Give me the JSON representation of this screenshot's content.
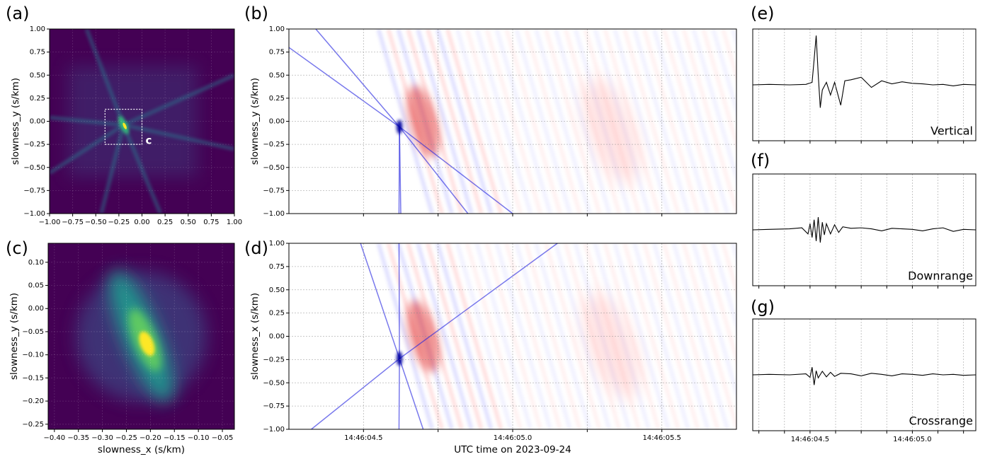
{
  "chart_data": [
    {
      "type": "heatmap",
      "panel_label": "(a)",
      "ylabel": "slowness_y (s/km)",
      "xlim": [
        -1,
        1
      ],
      "ylim": [
        -1,
        1
      ],
      "xticks": [
        {
          "value": -1,
          "label": "−1.00"
        },
        {
          "value": -0.75,
          "label": "−0.75"
        },
        {
          "value": -0.5,
          "label": "−0.50"
        },
        {
          "value": -0.25,
          "label": "−0.25"
        },
        {
          "value": 0,
          "label": "0.00"
        },
        {
          "value": 0.25,
          "label": "0.25"
        },
        {
          "value": 0.5,
          "label": "0.50"
        },
        {
          "value": 0.75,
          "label": "0.75"
        },
        {
          "value": 1,
          "label": "1.00"
        }
      ],
      "yticks": [
        {
          "value": -1,
          "label": "−1.00"
        },
        {
          "value": -0.75,
          "label": "−0.75"
        },
        {
          "value": -0.5,
          "label": "−0.50"
        },
        {
          "value": -0.25,
          "label": "−0.25"
        },
        {
          "value": 0,
          "label": "0.00"
        },
        {
          "value": 0.25,
          "label": "0.25"
        },
        {
          "value": 0.5,
          "label": "0.50"
        },
        {
          "value": 0.75,
          "label": "0.75"
        },
        {
          "value": 1,
          "label": "1.00"
        }
      ],
      "grid": true,
      "colormap": "viridis",
      "annotation": {
        "text": "c",
        "box_x": [
          -0.4,
          0
        ],
        "box_y": [
          -0.25,
          0.13
        ]
      }
    },
    {
      "type": "heatmap",
      "panel_label": "(b)",
      "ylabel": "slowness_y (s/km)",
      "xlim": [
        4.25,
        5.75
      ],
      "ylim": [
        -1,
        1
      ],
      "minor_xticks": [
        4.5,
        4.75,
        5,
        5.25,
        5.5
      ],
      "yticks": [
        {
          "value": -1,
          "label": "−1.00"
        },
        {
          "value": -0.75,
          "label": "−0.75"
        },
        {
          "value": -0.5,
          "label": "−0.50"
        },
        {
          "value": -0.25,
          "label": "−0.25"
        },
        {
          "value": 0,
          "label": "0.00"
        },
        {
          "value": 0.25,
          "label": "0.25"
        },
        {
          "value": 0.5,
          "label": "0.50"
        },
        {
          "value": 0.75,
          "label": "0.75"
        },
        {
          "value": 1,
          "label": "1.00"
        }
      ],
      "grid": true,
      "colormap": "bwr"
    },
    {
      "type": "heatmap",
      "panel_label": "(c)",
      "xlabel": "slowness_x (s/km)",
      "ylabel": "slowness_y (s/km)",
      "xlim": [
        -0.413,
        -0.025
      ],
      "ylim": [
        -0.261,
        0.141
      ],
      "xticks": [
        {
          "value": -0.4,
          "label": "−0.40"
        },
        {
          "value": -0.35,
          "label": "−0.35"
        },
        {
          "value": -0.3,
          "label": "−0.30"
        },
        {
          "value": -0.25,
          "label": "−0.25"
        },
        {
          "value": -0.2,
          "label": "−0.20"
        },
        {
          "value": -0.15,
          "label": "−0.15"
        },
        {
          "value": -0.1,
          "label": "−0.10"
        },
        {
          "value": -0.05,
          "label": "−0.05"
        }
      ],
      "yticks": [
        {
          "value": 0.1,
          "label": "0.10"
        },
        {
          "value": 0.05,
          "label": "0.05"
        },
        {
          "value": 0,
          "label": "0.00"
        },
        {
          "value": -0.05,
          "label": "−0.05"
        },
        {
          "value": -0.1,
          "label": "−0.10"
        },
        {
          "value": -0.15,
          "label": "−0.15"
        },
        {
          "value": -0.2,
          "label": "−0.20"
        },
        {
          "value": -0.25,
          "label": "−0.25"
        }
      ],
      "grid": true,
      "colormap": "viridis"
    },
    {
      "type": "heatmap",
      "panel_label": "(d)",
      "xlabel": "UTC time on 2023-09-24",
      "ylabel": "slowness_x (s/km)",
      "xlim": [
        4.25,
        5.75
      ],
      "ylim": [
        -1,
        1
      ],
      "xticks": [
        {
          "value": 4.5,
          "label": "14:46:04.5"
        },
        {
          "value": 5,
          "label": "14:46:05.0"
        },
        {
          "value": 5.5,
          "label": "14:46:05.5"
        }
      ],
      "minor_xticks": [
        4.75,
        5.25
      ],
      "yticks": [
        {
          "value": -1,
          "label": "−1.00"
        },
        {
          "value": -0.75,
          "label": "−0.75"
        },
        {
          "value": -0.5,
          "label": "−0.50"
        },
        {
          "value": -0.25,
          "label": "−0.25"
        },
        {
          "value": 0,
          "label": "0.00"
        },
        {
          "value": 0.25,
          "label": "0.25"
        },
        {
          "value": 0.5,
          "label": "0.50"
        },
        {
          "value": 0.75,
          "label": "0.75"
        },
        {
          "value": 1,
          "label": "1.00"
        }
      ],
      "grid": true,
      "colormap": "bwr"
    },
    {
      "type": "line",
      "panel_label": "(e)",
      "annotation": "Vertical",
      "color": "#000000",
      "xlim": [
        4.22,
        5.31
      ],
      "ylim": [
        -1.1,
        1.1
      ],
      "minor_xticks": [
        4.25,
        4.375,
        4.5,
        4.625,
        4.75,
        4.875,
        5,
        5.125,
        5.25
      ],
      "x": [
        4.22,
        4.3,
        4.4,
        4.48,
        4.51,
        4.52,
        4.53,
        4.54,
        4.55,
        4.56,
        4.58,
        4.6,
        4.62,
        4.65,
        4.67,
        4.7,
        4.75,
        4.8,
        4.85,
        4.9,
        4.95,
        5.0,
        5.05,
        5.1,
        5.15,
        5.2,
        5.25,
        5.31
      ],
      "values": [
        0,
        0.01,
        0,
        0.01,
        0.05,
        0.5,
        0.97,
        0.2,
        -0.45,
        -0.1,
        0.05,
        -0.2,
        0.05,
        -0.4,
        0.08,
        0.1,
        0.15,
        -0.05,
        0.08,
        0.02,
        0.06,
        0.03,
        0.02,
        0,
        0.01,
        -0.02,
        0.01,
        0
      ]
    },
    {
      "type": "line",
      "panel_label": "(f)",
      "annotation": "Downrange",
      "color": "#000000",
      "xlim": [
        4.22,
        5.31
      ],
      "ylim": [
        -1.1,
        1.1
      ],
      "minor_xticks": [
        4.25,
        4.375,
        4.5,
        4.625,
        4.75,
        4.875,
        5,
        5.125,
        5.25
      ],
      "x": [
        4.22,
        4.3,
        4.4,
        4.46,
        4.49,
        4.5,
        4.51,
        4.52,
        4.53,
        4.54,
        4.55,
        4.56,
        4.57,
        4.58,
        4.6,
        4.62,
        4.64,
        4.66,
        4.7,
        4.75,
        4.8,
        4.85,
        4.9,
        4.95,
        5.0,
        5.05,
        5.1,
        5.15,
        5.2,
        5.25,
        5.31
      ],
      "values": [
        0,
        0.01,
        0.02,
        0.04,
        -0.08,
        0.12,
        -0.15,
        0.2,
        -0.22,
        0.25,
        -0.25,
        0.15,
        -0.1,
        0.12,
        -0.08,
        0.1,
        -0.05,
        0.06,
        0.03,
        0.04,
        0.02,
        -0.02,
        0.03,
        0.02,
        0.01,
        -0.02,
        0.02,
        0.04,
        -0.03,
        0.01,
        0
      ]
    },
    {
      "type": "line",
      "panel_label": "(g)",
      "annotation": "Crossrange",
      "color": "#000000",
      "xlim": [
        4.22,
        5.31
      ],
      "ylim": [
        -1.1,
        1.1
      ],
      "xticks": [
        {
          "value": 4.5,
          "label": "14:46:04.5"
        },
        {
          "value": 5,
          "label": "14:46:05.0"
        }
      ],
      "minor_xticks": [
        4.25,
        4.375,
        4.625,
        4.75,
        4.875,
        5.125,
        5.25
      ],
      "x": [
        4.22,
        4.3,
        4.4,
        4.48,
        4.5,
        4.51,
        4.52,
        4.53,
        4.54,
        4.56,
        4.58,
        4.6,
        4.62,
        4.65,
        4.7,
        4.75,
        4.8,
        4.85,
        4.9,
        4.95,
        5.0,
        5.05,
        5.1,
        5.15,
        5.2,
        5.25,
        5.31
      ],
      "values": [
        0,
        0.01,
        0,
        0.02,
        -0.05,
        0.15,
        -0.2,
        0.08,
        -0.06,
        0.07,
        -0.04,
        0.05,
        -0.03,
        0.03,
        0.02,
        -0.02,
        0.03,
        0.01,
        -0.02,
        0.02,
        0.01,
        -0.01,
        0.02,
        0,
        0.01,
        -0.01,
        0
      ]
    }
  ]
}
